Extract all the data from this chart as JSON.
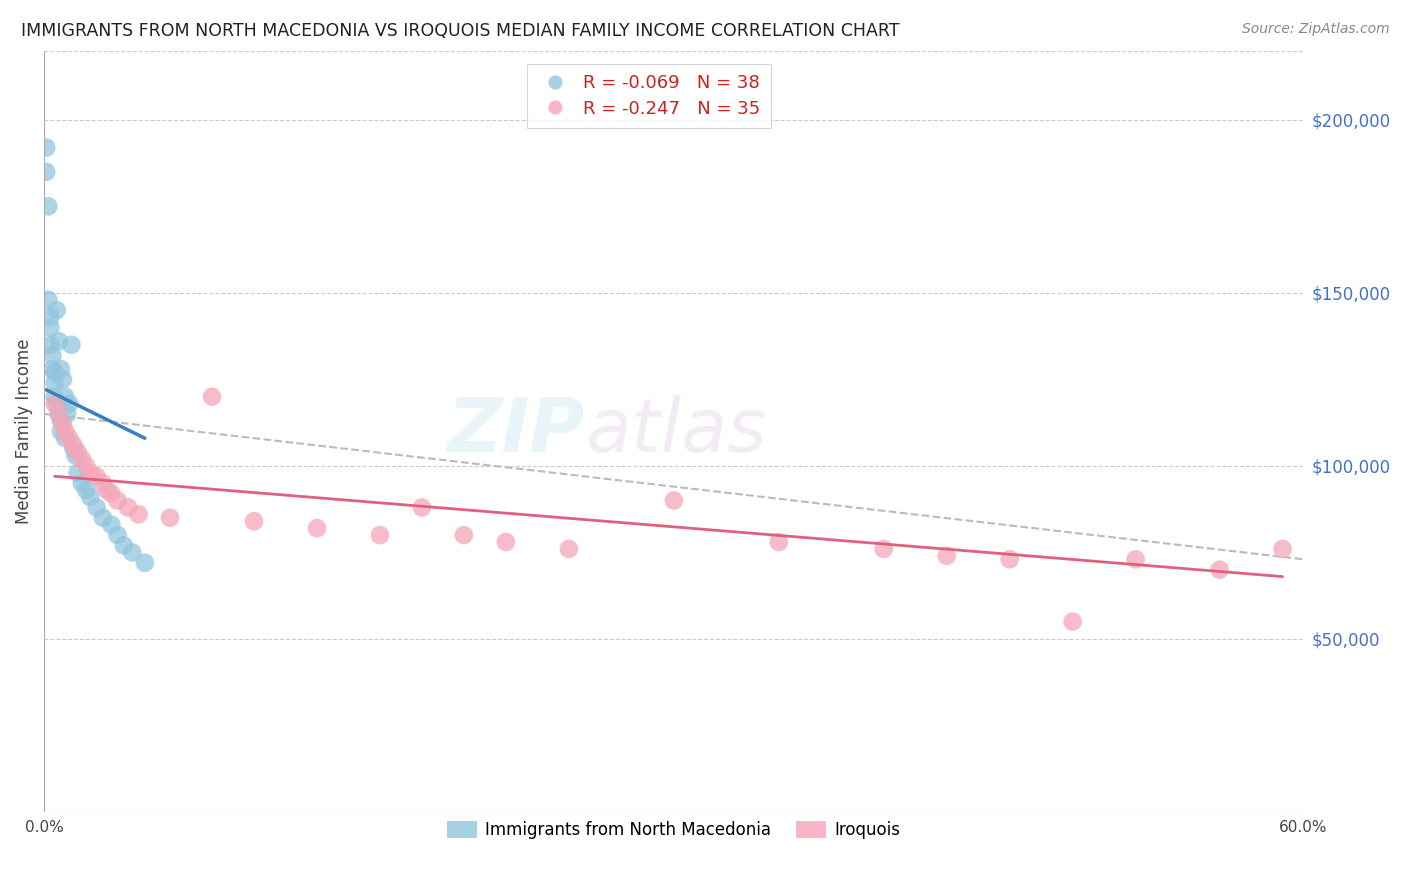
{
  "title": "IMMIGRANTS FROM NORTH MACEDONIA VS IROQUOIS MEDIAN FAMILY INCOME CORRELATION CHART",
  "source": "Source: ZipAtlas.com",
  "ylabel": "Median Family Income",
  "right_ytick_labels": [
    "",
    "$50,000",
    "$100,000",
    "$150,000",
    "$200,000"
  ],
  "right_yticks": [
    0,
    50000,
    100000,
    150000,
    200000
  ],
  "ylim": [
    0,
    220000
  ],
  "xlim": [
    0.0,
    0.6
  ],
  "watermark_zip": "ZIP",
  "watermark_atlas": "atlas",
  "legend1_label": "R = -0.069   N = 38",
  "legend2_label": "R = -0.247   N = 35",
  "blue_color": "#92c5de",
  "pink_color": "#f4a6b8",
  "blue_line_color": "#3a7ebf",
  "pink_line_color": "#e0607e",
  "dash_line_color": "#bbbbbb",
  "background_color": "#ffffff",
  "grid_color": "#cccccc",
  "blue_x": [
    0.001,
    0.002,
    0.002,
    0.003,
    0.003,
    0.003,
    0.004,
    0.004,
    0.005,
    0.005,
    0.005,
    0.006,
    0.006,
    0.007,
    0.007,
    0.008,
    0.008,
    0.008,
    0.009,
    0.01,
    0.01,
    0.011,
    0.012,
    0.013,
    0.014,
    0.015,
    0.016,
    0.018,
    0.02,
    0.022,
    0.025,
    0.028,
    0.032,
    0.035,
    0.038,
    0.042,
    0.048,
    0.001
  ],
  "blue_y": [
    185000,
    175000,
    148000,
    143000,
    140000,
    135000,
    132000,
    128000,
    127000,
    124000,
    120000,
    145000,
    118000,
    136000,
    115000,
    113000,
    128000,
    110000,
    125000,
    120000,
    108000,
    115000,
    118000,
    135000,
    105000,
    103000,
    98000,
    95000,
    93000,
    91000,
    88000,
    85000,
    83000,
    80000,
    77000,
    75000,
    72000,
    192000
  ],
  "pink_x": [
    0.005,
    0.007,
    0.009,
    0.01,
    0.012,
    0.014,
    0.016,
    0.018,
    0.02,
    0.022,
    0.025,
    0.028,
    0.03,
    0.032,
    0.035,
    0.04,
    0.045,
    0.06,
    0.08,
    0.1,
    0.13,
    0.16,
    0.18,
    0.2,
    0.22,
    0.25,
    0.3,
    0.35,
    0.4,
    0.43,
    0.46,
    0.49,
    0.52,
    0.56,
    0.59
  ],
  "pink_y": [
    118000,
    115000,
    112000,
    110000,
    108000,
    106000,
    104000,
    102000,
    100000,
    98000,
    97000,
    95000,
    93000,
    92000,
    90000,
    88000,
    86000,
    85000,
    120000,
    84000,
    82000,
    80000,
    88000,
    80000,
    78000,
    76000,
    90000,
    78000,
    76000,
    74000,
    73000,
    55000,
    73000,
    70000,
    76000
  ],
  "blue_line_x": [
    0.001,
    0.048
  ],
  "blue_line_y": [
    122000,
    108000
  ],
  "pink_line_x": [
    0.005,
    0.59
  ],
  "pink_line_y": [
    97000,
    68000
  ],
  "dash_line_x": [
    0.0,
    0.6
  ],
  "dash_line_y": [
    115000,
    73000
  ]
}
